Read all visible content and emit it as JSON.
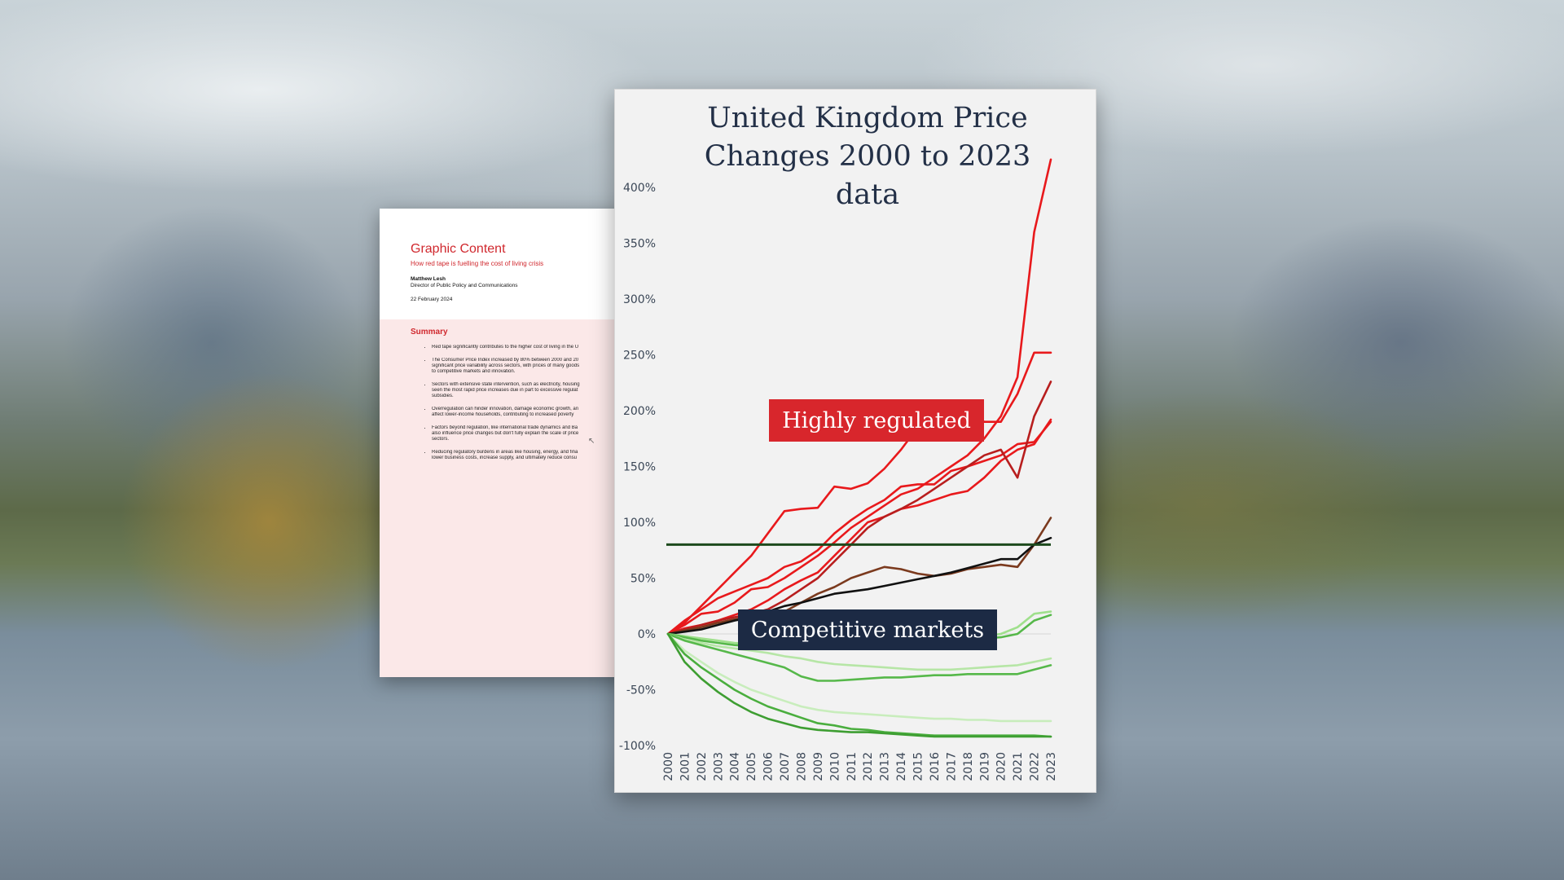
{
  "document": {
    "title": "Graphic Content",
    "subtitle": "How red tape is fuelling the cost of living crisis",
    "author": "Matthew Lesh",
    "role": "Director of Public Policy and Communications",
    "date": "22 February 2024",
    "summary_heading": "Summary",
    "summary_items": [
      [
        "Red tape significantly contributes to the higher cost of living in the U"
      ],
      [
        "The Consumer Price Index increased by 80% between 2000 and 20",
        "significant price variability across sectors, with prices of many goods",
        "to competitive markets and innovation."
      ],
      [
        "Sectors with extensive state intervention, such as electricity, housing",
        "seen the most rapid price increases due in part to excessive regulat",
        "subsidies."
      ],
      [
        "Overregulation can hinder innovation, damage economic growth, an",
        "affect lower-income households, contributing to increased poverty"
      ],
      [
        "Factors beyond regulation, like international trade dynamics and Ba",
        "also influence price changes but don't fully explain the scale of price",
        "sectors."
      ],
      [
        "Reducing regulatory burdens in areas like housing, energy, and fina",
        "lower business costs, increase supply, and ultimately reduce consu"
      ]
    ]
  },
  "chart_data": {
    "type": "line",
    "title": "United Kingdom Price Changes 2000 to 2023 data",
    "x": [
      2000,
      2001,
      2002,
      2003,
      2004,
      2005,
      2006,
      2007,
      2008,
      2009,
      2010,
      2011,
      2012,
      2013,
      2014,
      2015,
      2016,
      2017,
      2018,
      2019,
      2020,
      2021,
      2022,
      2023
    ],
    "x_tick_labels": [
      "2000",
      "2001",
      "2002",
      "2003",
      "2004",
      "2005",
      "2006",
      "2007",
      "2008",
      "2009",
      "2010",
      "2011",
      "2012",
      "2013",
      "2014",
      "2015",
      "2016",
      "2017",
      "2018",
      "2019",
      "2020",
      "2021",
      "2022",
      "2023"
    ],
    "y_tick_labels": [
      "400%",
      "350%",
      "300%",
      "250%",
      "200%",
      "150%",
      "100%",
      "50%",
      "0%",
      "-50%",
      "-100%"
    ],
    "y_ticks": [
      400,
      350,
      300,
      250,
      200,
      150,
      100,
      50,
      0,
      -50,
      -100
    ],
    "ylim": [
      -100,
      400
    ],
    "reference_line": 80,
    "annotations": [
      "Highly regulated",
      "Competitive markets"
    ],
    "series": [
      {
        "color": "#e8191c",
        "values": [
          0,
          8,
          18,
          20,
          28,
          40,
          42,
          50,
          60,
          70,
          82,
          95,
          105,
          115,
          125,
          130,
          140,
          150,
          160,
          175,
          195,
          230,
          360,
          425
        ]
      },
      {
        "color": "#e8191c",
        "values": [
          0,
          10,
          25,
          40,
          55,
          70,
          90,
          110,
          112,
          113,
          132,
          130,
          135,
          148,
          165,
          185,
          190,
          195,
          200,
          190,
          190,
          215,
          252,
          252
        ]
      },
      {
        "color": "#e8191c",
        "values": [
          0,
          12,
          22,
          32,
          38,
          44,
          50,
          60,
          65,
          75,
          90,
          102,
          112,
          120,
          132,
          134,
          134,
          146,
          150,
          155,
          160,
          170,
          172,
          190
        ]
      },
      {
        "color": "#e8191c",
        "values": [
          0,
          5,
          8,
          12,
          17,
          22,
          30,
          40,
          48,
          55,
          70,
          85,
          100,
          105,
          112,
          115,
          120,
          125,
          128,
          140,
          155,
          165,
          170,
          192
        ]
      },
      {
        "color": "#b81e1e",
        "values": [
          0,
          4,
          8,
          12,
          15,
          18,
          22,
          30,
          40,
          50,
          65,
          80,
          95,
          105,
          112,
          120,
          130,
          140,
          150,
          160,
          165,
          140,
          195,
          226
        ]
      },
      {
        "color": "#7b3a1e",
        "values": [
          0,
          3,
          6,
          10,
          13,
          16,
          18,
          20,
          28,
          36,
          42,
          50,
          55,
          60,
          58,
          54,
          52,
          54,
          58,
          60,
          62,
          60,
          80,
          104
        ]
      },
      {
        "color": "#111111",
        "values": [
          0,
          2,
          4,
          8,
          12,
          15,
          20,
          25,
          28,
          32,
          36,
          38,
          40,
          43,
          46,
          49,
          52,
          55,
          59,
          63,
          67,
          67,
          80,
          86
        ]
      },
      {
        "color": "#9fe08c",
        "values": [
          0,
          -2,
          -4,
          -6,
          -8,
          -9,
          -10,
          -10,
          -11,
          -11,
          -10,
          -9,
          -8,
          -7,
          -6,
          -5,
          -5,
          -4,
          -3,
          -2,
          0,
          6,
          18,
          20
        ]
      },
      {
        "color": "#56b84a",
        "values": [
          0,
          -3,
          -6,
          -8,
          -10,
          -11,
          -12,
          -12,
          -12,
          -12,
          -11,
          -10,
          -10,
          -9,
          -8,
          -8,
          -7,
          -6,
          -5,
          -4,
          -3,
          0,
          12,
          17
        ]
      },
      {
        "color": "#b6e6a6",
        "values": [
          0,
          -5,
          -8,
          -11,
          -13,
          -15,
          -17,
          -20,
          -22,
          -25,
          -27,
          -28,
          -29,
          -30,
          -31,
          -32,
          -32,
          -32,
          -31,
          -30,
          -29,
          -28,
          -25,
          -22
        ]
      },
      {
        "color": "#56b84a",
        "values": [
          0,
          -6,
          -10,
          -14,
          -18,
          -22,
          -26,
          -30,
          -38,
          -42,
          -42,
          -41,
          -40,
          -39,
          -39,
          -38,
          -37,
          -37,
          -36,
          -36,
          -36,
          -36,
          -32,
          -28
        ]
      },
      {
        "color": "#c8edbc",
        "values": [
          0,
          -15,
          -25,
          -35,
          -43,
          -50,
          -55,
          -60,
          -65,
          -68,
          -70,
          -71,
          -72,
          -73,
          -74,
          -75,
          -76,
          -76,
          -77,
          -77,
          -78,
          -78,
          -78,
          -78
        ]
      },
      {
        "color": "#4aae3e",
        "values": [
          0,
          -18,
          -30,
          -40,
          -50,
          -58,
          -65,
          -70,
          -75,
          -80,
          -82,
          -85,
          -86,
          -88,
          -89,
          -90,
          -91,
          -91,
          -91,
          -91,
          -91,
          -91,
          -91,
          -92
        ]
      },
      {
        "color": "#3e9e32",
        "values": [
          0,
          -25,
          -40,
          -52,
          -62,
          -70,
          -76,
          -80,
          -84,
          -86,
          -87,
          -88,
          -88,
          -89,
          -90,
          -91,
          -92,
          -92,
          -92,
          -92,
          -92,
          -92,
          -92,
          -92
        ]
      }
    ]
  }
}
